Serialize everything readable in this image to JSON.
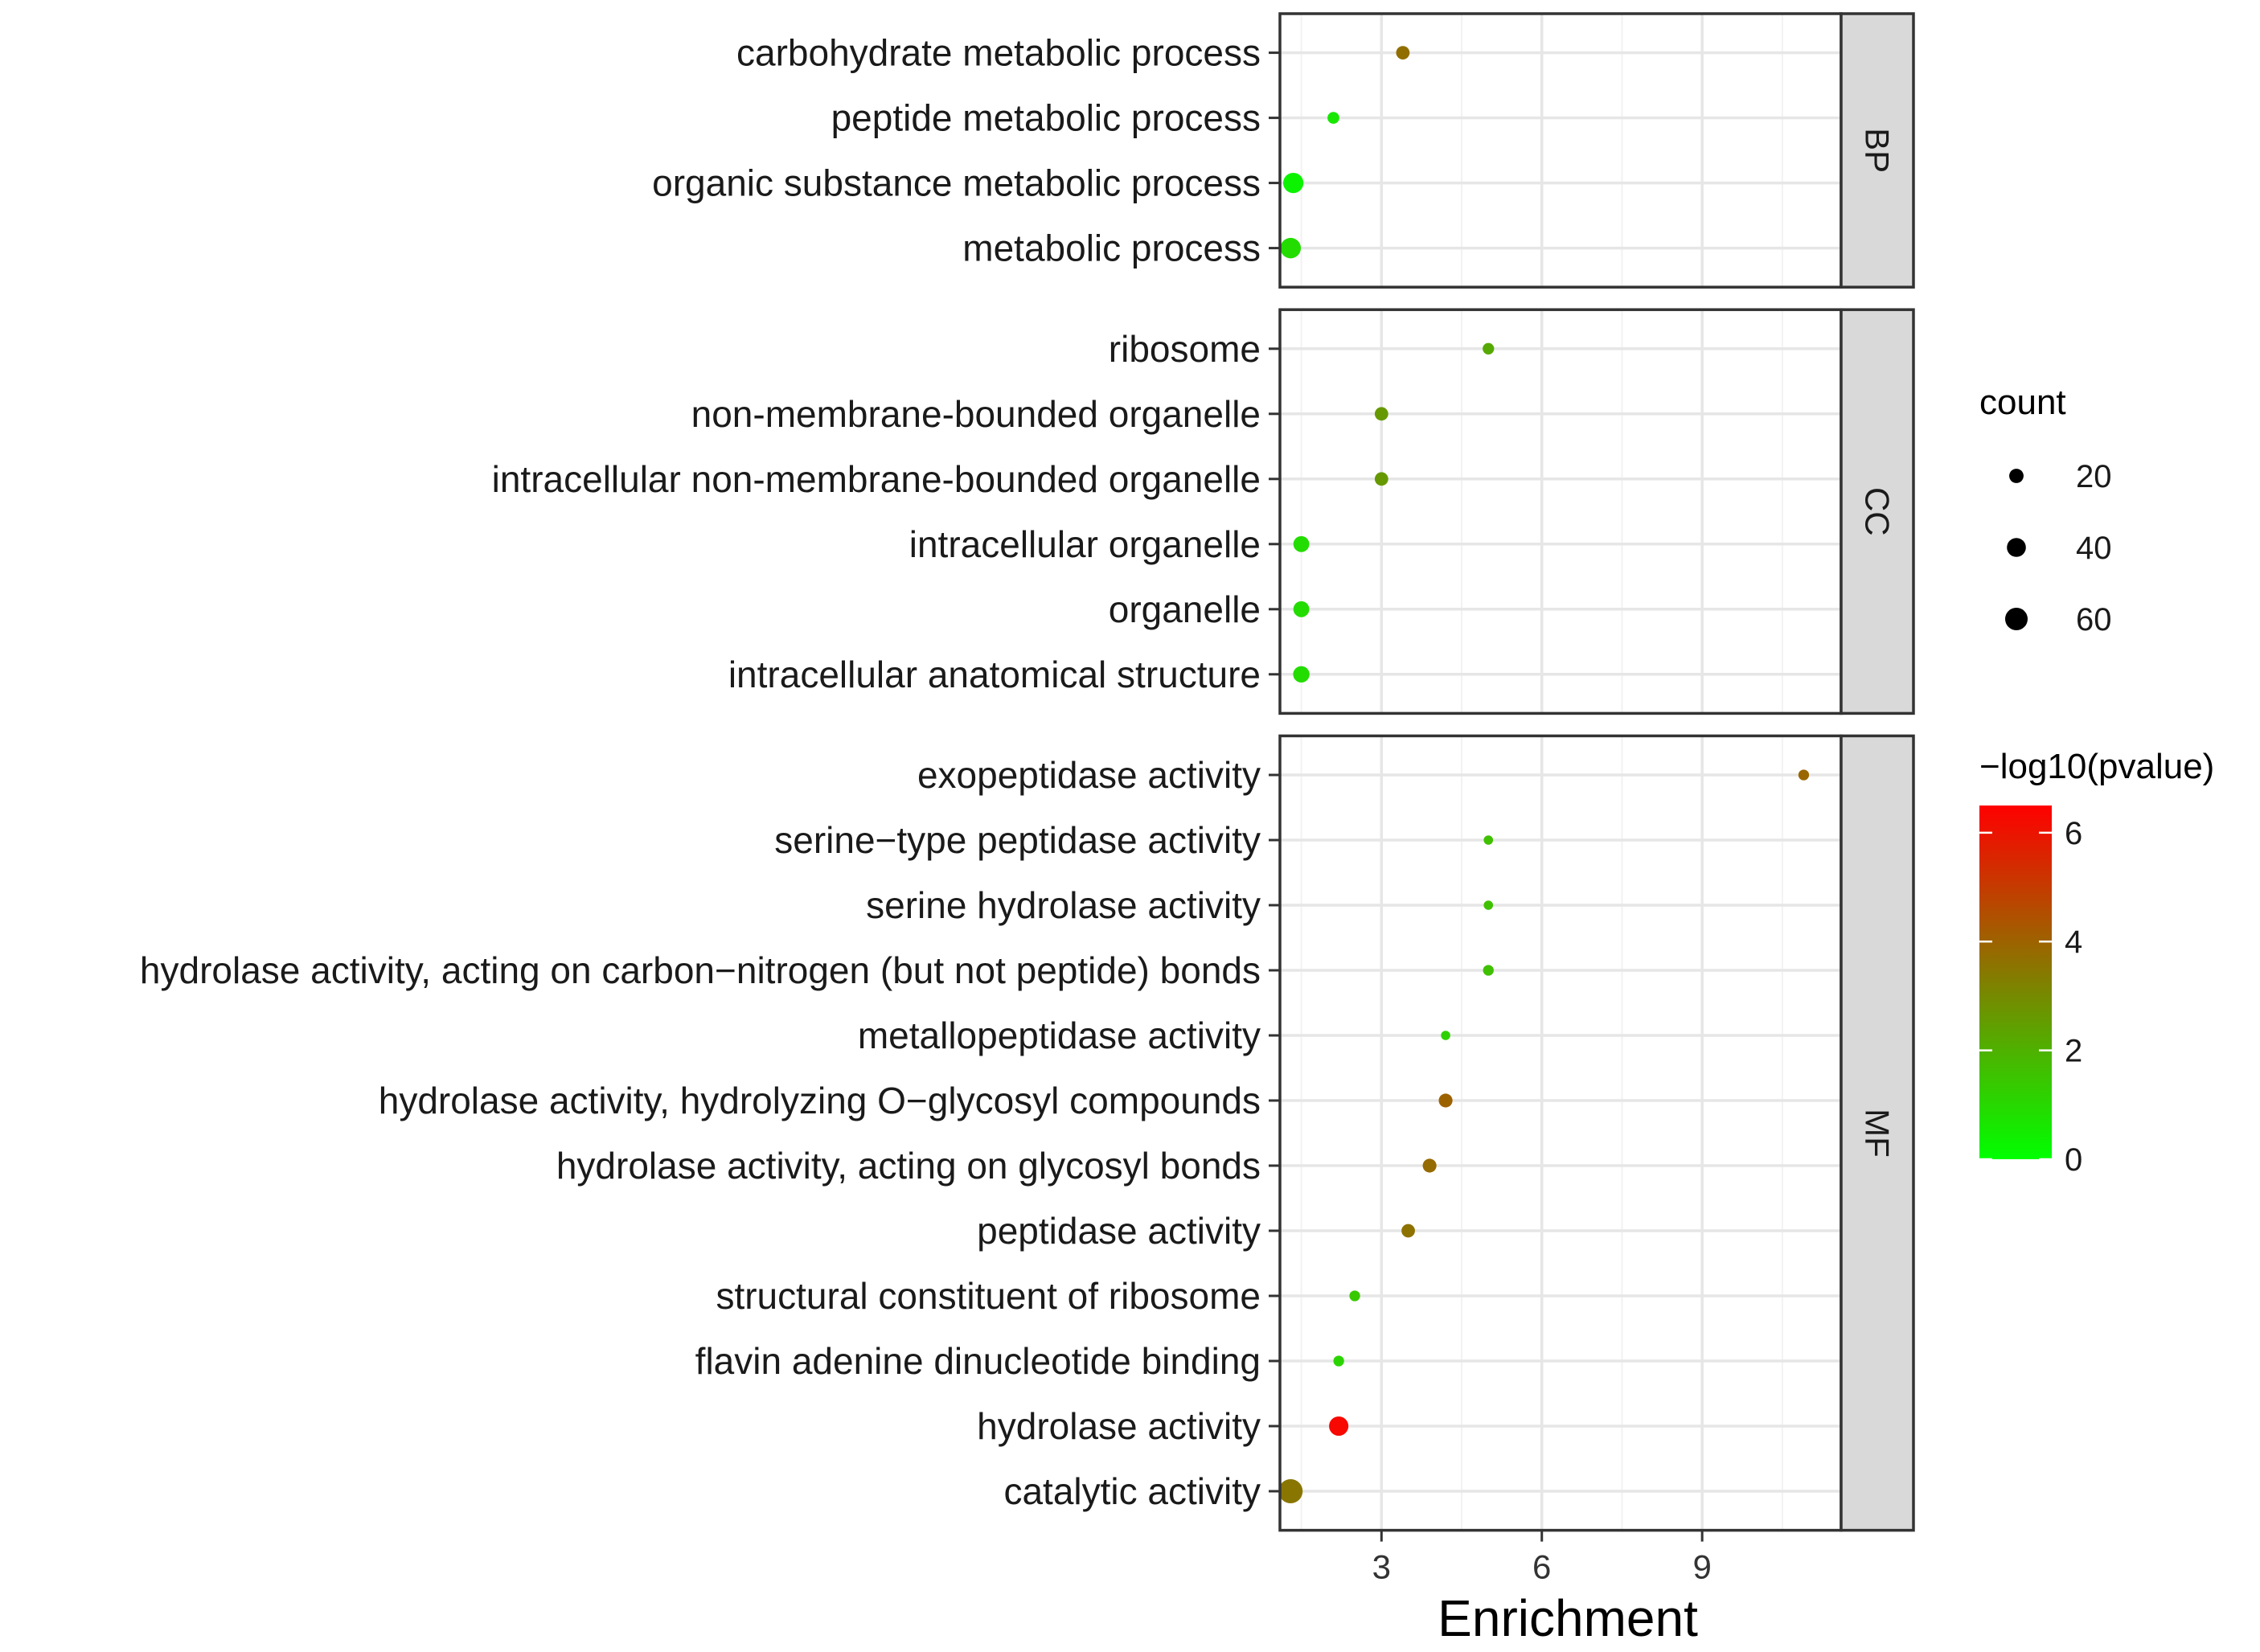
{
  "chart_data": {
    "type": "scatter",
    "title": "",
    "xlabel": "Enrichment",
    "ylabel": "",
    "xlim": [
      1.1,
      11.6
    ],
    "xticks": [
      3,
      6,
      9
    ],
    "xtick_labels": [
      "3",
      "6",
      "9"
    ],
    "grid": true,
    "panels": [
      {
        "name": "BP",
        "terms": [
          {
            "label": "carbohydrate metabolic process",
            "enrichment": 3.4,
            "count": 17,
            "neglog10p": 3.7
          },
          {
            "label": "peptide metabolic process",
            "enrichment": 2.1,
            "count": 12,
            "neglog10p": 0.6
          },
          {
            "label": "organic substance metabolic process",
            "enrichment": 1.35,
            "count": 47,
            "neglog10p": 0.3
          },
          {
            "label": "metabolic process",
            "enrichment": 1.3,
            "count": 48,
            "neglog10p": 0.9
          }
        ]
      },
      {
        "name": "CC",
        "terms": [
          {
            "label": "ribosome",
            "enrichment": 5.0,
            "count": 11,
            "neglog10p": 2.2
          },
          {
            "label": "non-membrane-bounded organelle",
            "enrichment": 3.0,
            "count": 17,
            "neglog10p": 2.6
          },
          {
            "label": "intracellular non-membrane-bounded organelle",
            "enrichment": 3.0,
            "count": 17,
            "neglog10p": 2.6
          },
          {
            "label": "intracellular organelle",
            "enrichment": 1.5,
            "count": 26,
            "neglog10p": 0.9
          },
          {
            "label": "organelle",
            "enrichment": 1.5,
            "count": 26,
            "neglog10p": 0.9
          },
          {
            "label": "intracellular anatomical structure",
            "enrichment": 1.5,
            "count": 28,
            "neglog10p": 0.9
          }
        ]
      },
      {
        "name": "MF",
        "terms": [
          {
            "label": "exopeptidase activity",
            "enrichment": 10.9,
            "count": 9,
            "neglog10p": 3.9
          },
          {
            "label": "serine−type peptidase activity",
            "enrichment": 5.0,
            "count": 6,
            "neglog10p": 1.6
          },
          {
            "label": "serine hydrolase activity",
            "enrichment": 5.0,
            "count": 6,
            "neglog10p": 1.6
          },
          {
            "label": "hydrolase activity, acting on carbon−nitrogen (but not peptide) bonds",
            "enrichment": 5.0,
            "count": 9,
            "neglog10p": 1.6
          },
          {
            "label": "metallopeptidase activity",
            "enrichment": 4.2,
            "count": 6,
            "neglog10p": 1.2
          },
          {
            "label": "hydrolase activity, hydrolyzing O−glycosyl compounds",
            "enrichment": 4.2,
            "count": 18,
            "neglog10p": 4.0
          },
          {
            "label": "hydrolase activity, acting on glycosyl bonds",
            "enrichment": 3.9,
            "count": 18,
            "neglog10p": 3.8
          },
          {
            "label": "peptidase activity",
            "enrichment": 3.5,
            "count": 17,
            "neglog10p": 3.6
          },
          {
            "label": "structural constituent of ribosome",
            "enrichment": 2.5,
            "count": 9,
            "neglog10p": 1.4
          },
          {
            "label": "flavin adenine dinucleotide binding",
            "enrichment": 2.2,
            "count": 9,
            "neglog10p": 1.1
          },
          {
            "label": "hydrolase activity",
            "enrichment": 2.2,
            "count": 42,
            "neglog10p": 6.3
          },
          {
            "label": "catalytic activity",
            "enrichment": 1.3,
            "count": 70,
            "neglog10p": 3.5
          }
        ]
      }
    ],
    "size_legend": {
      "title": "count",
      "breaks": [
        20,
        40,
        60
      ],
      "labels": [
        "20",
        "40",
        "60"
      ]
    },
    "color_legend": {
      "title": "−log10(pvalue)",
      "min": 0,
      "max": 6.5,
      "breaks": [
        0,
        2,
        4,
        6
      ],
      "labels": [
        "0",
        "2",
        "4",
        "6"
      ],
      "low_color": "#00ff00",
      "high_color": "#ff0000"
    }
  }
}
